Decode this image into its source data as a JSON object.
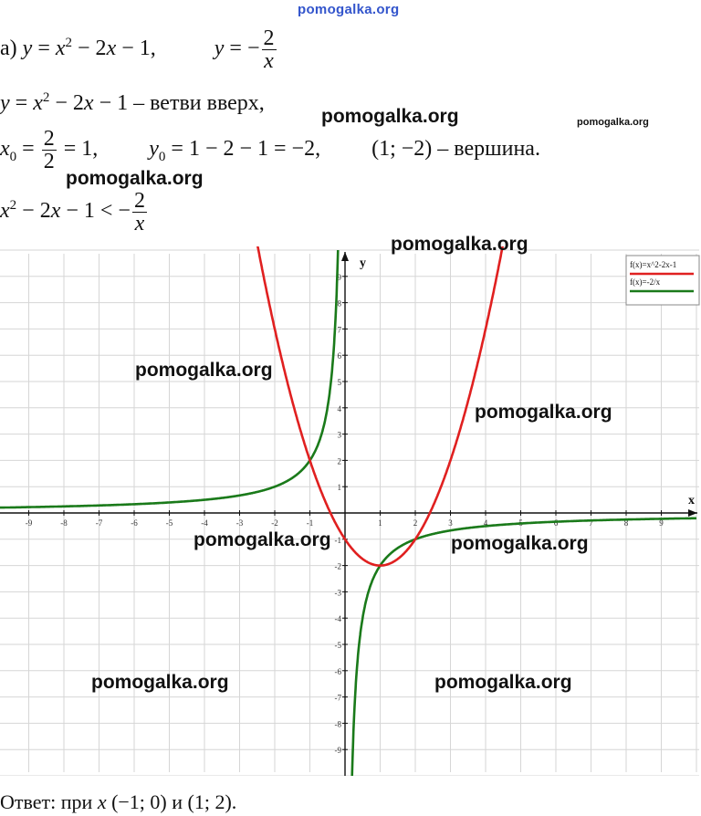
{
  "site_header": "pomogalka.org",
  "watermarks": [
    "pomogalka.org",
    "pomogalka.org",
    "pomogalka.org",
    "pomogalka.org",
    "pomogalka.org",
    "pomogalka.org",
    "pomogalka.org",
    "pomogalka.org",
    "pomogalka.org",
    "pomogalka.org"
  ],
  "text": {
    "label": "а)",
    "parabola_branches": "– ветви вверх,",
    "vertex_word": "– вершина.",
    "answer_prefix": "Ответ: при",
    "answer_intervals": "(−1; 0) и (1; 2)."
  },
  "chart_data": {
    "type": "line",
    "title": "",
    "xlabel": "x",
    "ylabel": "y",
    "xlim": [
      -10,
      10
    ],
    "ylim": [
      -10,
      10
    ],
    "grid": true,
    "legend_position": "top-right",
    "x_ticks": [
      -9,
      -8,
      -7,
      -6,
      -5,
      -4,
      -3,
      -2,
      -1,
      1,
      2,
      3,
      4,
      5,
      6,
      7,
      8,
      9
    ],
    "y_ticks": [
      -9,
      -8,
      -7,
      -6,
      -5,
      -4,
      -3,
      -2,
      -1,
      1,
      2,
      3,
      4,
      5,
      6,
      7,
      8,
      9
    ],
    "series": [
      {
        "name": "f(x)=x^2-2x-1",
        "color": "#e02020",
        "formula": "x^2-2x-1"
      },
      {
        "name": "f(x)=-2/x",
        "color": "#1a7a1a",
        "formula": "-2/x"
      }
    ]
  }
}
